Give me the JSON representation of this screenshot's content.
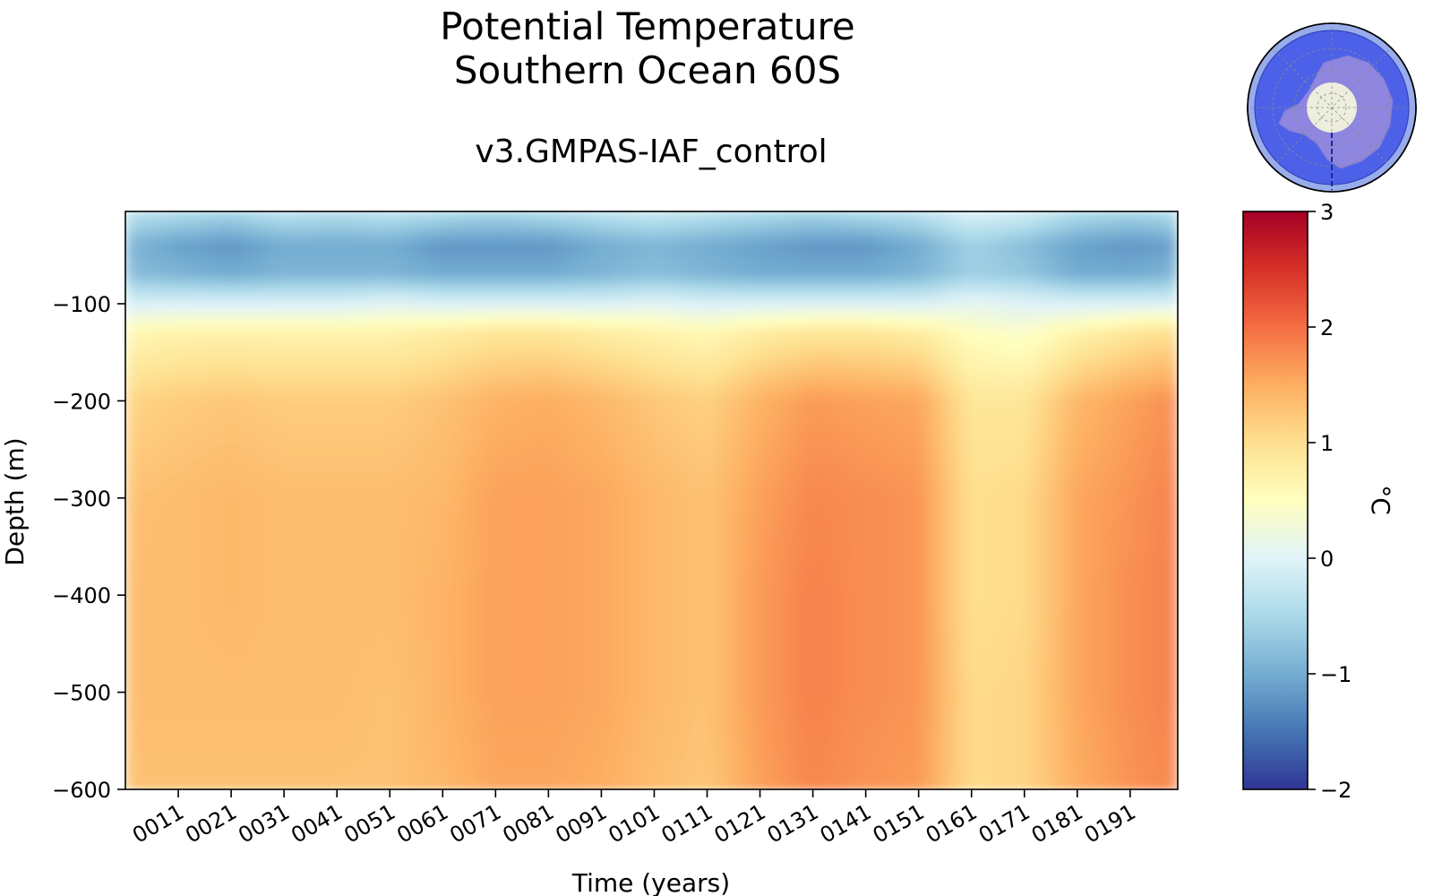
{
  "chart_data": {
    "type": "heatmap",
    "title_lines": [
      "Potential Temperature",
      "Southern Ocean 60S"
    ],
    "subtitle": "v3.GMPAS-IAF_control",
    "xlabel": "Time (years)",
    "ylabel": "Depth (m)",
    "colorbar_label": "°C",
    "colormap": "RdYlBu_r",
    "xlim": [
      1,
      200
    ],
    "ylim": [
      -600,
      -5
    ],
    "clim": [
      -2,
      3
    ],
    "x_ticks": [
      11,
      21,
      31,
      41,
      51,
      61,
      71,
      81,
      91,
      101,
      111,
      121,
      131,
      141,
      151,
      161,
      171,
      181,
      191
    ],
    "x_tick_labels": [
      "0011",
      "0021",
      "0031",
      "0041",
      "0051",
      "0061",
      "0071",
      "0081",
      "0091",
      "0101",
      "0111",
      "0121",
      "0131",
      "0141",
      "0151",
      "0161",
      "0171",
      "0181",
      "0191"
    ],
    "y_ticks": [
      -100,
      -200,
      -300,
      -400,
      -500,
      -600
    ],
    "y_tick_labels": [
      "−100",
      "−200",
      "−300",
      "−400",
      "−500",
      "−600"
    ],
    "colorbar_ticks": [
      3,
      2,
      1,
      0,
      -1,
      -2
    ],
    "colorbar_tick_labels": [
      "3",
      "2",
      "1",
      "0",
      "−1",
      "−2"
    ],
    "depth_levels": [
      -5,
      -40,
      -70,
      -95,
      -130,
      -200,
      -300,
      -400,
      -500,
      -600
    ],
    "time_series": [
      {
        "year": 1,
        "profile": [
          -0.3,
          -0.9,
          -0.8,
          -0.2,
          0.6,
          1.1,
          1.3,
          1.35,
          1.35,
          1.3
        ]
      },
      {
        "year": 11,
        "profile": [
          -0.4,
          -1.1,
          -0.9,
          -0.2,
          0.7,
          1.2,
          1.35,
          1.35,
          1.35,
          1.3
        ]
      },
      {
        "year": 21,
        "profile": [
          -0.5,
          -1.2,
          -1.0,
          -0.2,
          0.7,
          1.25,
          1.4,
          1.4,
          1.35,
          1.3
        ]
      },
      {
        "year": 31,
        "profile": [
          -0.3,
          -1.0,
          -0.9,
          -0.2,
          0.7,
          1.2,
          1.35,
          1.35,
          1.35,
          1.3
        ]
      },
      {
        "year": 41,
        "profile": [
          -0.4,
          -1.0,
          -0.9,
          -0.2,
          0.7,
          1.2,
          1.35,
          1.35,
          1.35,
          1.3
        ]
      },
      {
        "year": 51,
        "profile": [
          -0.3,
          -1.0,
          -0.9,
          -0.1,
          0.7,
          1.2,
          1.35,
          1.35,
          1.3,
          1.3
        ]
      },
      {
        "year": 61,
        "profile": [
          -0.4,
          -1.2,
          -1.0,
          -0.2,
          0.8,
          1.3,
          1.4,
          1.45,
          1.45,
          1.4
        ]
      },
      {
        "year": 71,
        "profile": [
          -0.5,
          -1.2,
          -1.0,
          -0.2,
          0.9,
          1.45,
          1.6,
          1.6,
          1.6,
          1.55
        ]
      },
      {
        "year": 81,
        "profile": [
          -0.4,
          -1.2,
          -1.0,
          -0.2,
          0.9,
          1.5,
          1.6,
          1.6,
          1.6,
          1.55
        ]
      },
      {
        "year": 91,
        "profile": [
          -0.3,
          -1.0,
          -0.9,
          -0.2,
          0.8,
          1.4,
          1.55,
          1.55,
          1.55,
          1.5
        ]
      },
      {
        "year": 101,
        "profile": [
          -0.2,
          -0.9,
          -0.8,
          -0.1,
          0.7,
          1.25,
          1.4,
          1.4,
          1.4,
          1.35
        ]
      },
      {
        "year": 111,
        "profile": [
          -0.3,
          -1.0,
          -0.9,
          -0.2,
          0.6,
          1.15,
          1.3,
          1.3,
          1.3,
          1.25
        ]
      },
      {
        "year": 121,
        "profile": [
          -0.4,
          -1.1,
          -1.0,
          -0.2,
          0.8,
          1.45,
          1.6,
          1.65,
          1.65,
          1.6
        ]
      },
      {
        "year": 131,
        "profile": [
          -0.5,
          -1.2,
          -1.0,
          -0.2,
          0.9,
          1.65,
          1.8,
          1.85,
          1.85,
          1.8
        ]
      },
      {
        "year": 141,
        "profile": [
          -0.4,
          -1.2,
          -1.0,
          -0.2,
          0.9,
          1.6,
          1.75,
          1.75,
          1.75,
          1.7
        ]
      },
      {
        "year": 151,
        "profile": [
          -0.3,
          -1.0,
          -0.9,
          -0.2,
          0.8,
          1.55,
          1.7,
          1.7,
          1.7,
          1.65
        ]
      },
      {
        "year": 161,
        "profile": [
          0.0,
          -0.6,
          -0.6,
          0.0,
          0.5,
          0.9,
          1.0,
          1.0,
          1.05,
          1.05
        ]
      },
      {
        "year": 171,
        "profile": [
          -0.1,
          -0.8,
          -0.7,
          -0.1,
          0.4,
          0.9,
          1.05,
          1.05,
          1.1,
          1.1
        ]
      },
      {
        "year": 181,
        "profile": [
          -0.4,
          -1.1,
          -1.0,
          -0.2,
          0.7,
          1.4,
          1.55,
          1.55,
          1.55,
          1.5
        ]
      },
      {
        "year": 191,
        "profile": [
          -0.5,
          -1.2,
          -1.0,
          -0.2,
          0.9,
          1.6,
          1.7,
          1.75,
          1.75,
          1.7
        ]
      },
      {
        "year": 200,
        "profile": [
          -0.4,
          -1.1,
          -0.9,
          -0.2,
          1.0,
          1.75,
          1.85,
          1.85,
          1.85,
          1.8
        ]
      }
    ]
  }
}
